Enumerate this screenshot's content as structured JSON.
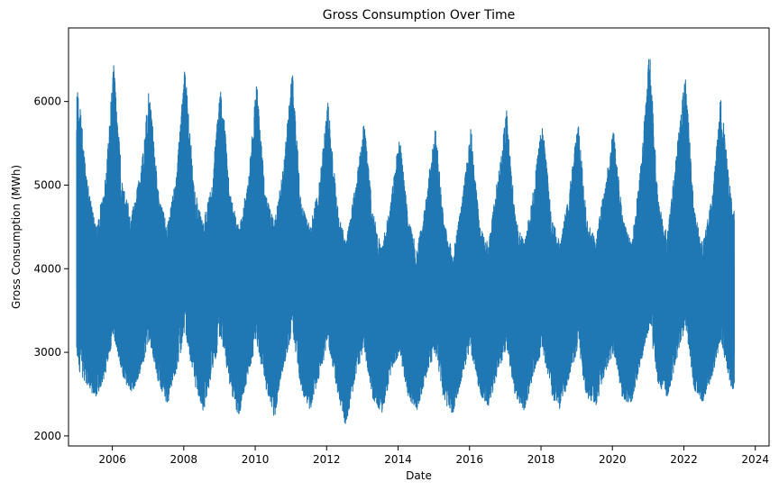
{
  "chart_data": {
    "type": "line",
    "title": "Gross Consumption Over Time",
    "xlabel": "Date",
    "ylabel": "Gross Consumption (MWh)",
    "x_range": [
      "2004-10-10",
      "2024-05-21"
    ],
    "ylim": [
      1880,
      6880
    ],
    "x_ticks": [
      "2006",
      "2008",
      "2010",
      "2012",
      "2014",
      "2016",
      "2018",
      "2020",
      "2022",
      "2024"
    ],
    "y_ticks": [
      2000,
      3000,
      4000,
      5000,
      6000
    ],
    "grid": false,
    "legend": "none",
    "color": "#1f77b4",
    "series": [
      {
        "date_start": "2005-01-01",
        "date_end": "2023-05-31",
        "monthly_envelope": [
          [
            "2005-01",
            2800,
            6200
          ],
          [
            "2005-04",
            2600,
            5100
          ],
          [
            "2005-07",
            2450,
            4500
          ],
          [
            "2005-10",
            2700,
            5000
          ],
          [
            "2006-01",
            3200,
            6450
          ],
          [
            "2006-04",
            2700,
            5000
          ],
          [
            "2006-07",
            2500,
            4650
          ],
          [
            "2006-10",
            2750,
            5150
          ],
          [
            "2007-01",
            3150,
            6200
          ],
          [
            "2007-04",
            2650,
            4950
          ],
          [
            "2007-07",
            2350,
            4500
          ],
          [
            "2007-10",
            2750,
            5100
          ],
          [
            "2008-01",
            3250,
            6450
          ],
          [
            "2008-04",
            2650,
            5000
          ],
          [
            "2008-07",
            2250,
            4550
          ],
          [
            "2008-10",
            2750,
            5000
          ],
          [
            "2009-01",
            3200,
            6300
          ],
          [
            "2009-04",
            2600,
            4950
          ],
          [
            "2009-07",
            2200,
            4500
          ],
          [
            "2009-10",
            2700,
            5000
          ],
          [
            "2010-01",
            3100,
            6250
          ],
          [
            "2010-04",
            2600,
            4900
          ],
          [
            "2010-07",
            2200,
            4550
          ],
          [
            "2010-10",
            2800,
            5200
          ],
          [
            "2011-01",
            3250,
            6400
          ],
          [
            "2011-04",
            2550,
            4800
          ],
          [
            "2011-07",
            2300,
            4500
          ],
          [
            "2011-10",
            2700,
            5000
          ],
          [
            "2012-01",
            3100,
            6000
          ],
          [
            "2012-04",
            2550,
            4800
          ],
          [
            "2012-07",
            2100,
            4300
          ],
          [
            "2012-10",
            2650,
            4950
          ],
          [
            "2013-01",
            3050,
            5800
          ],
          [
            "2013-04",
            2450,
            4700
          ],
          [
            "2013-07",
            2250,
            4250
          ],
          [
            "2013-10",
            2700,
            4800
          ],
          [
            "2014-01",
            3000,
            5600
          ],
          [
            "2014-04",
            2450,
            4600
          ],
          [
            "2014-07",
            2300,
            4250
          ],
          [
            "2014-10",
            2700,
            4850
          ],
          [
            "2015-01",
            3000,
            5750
          ],
          [
            "2015-04",
            2400,
            4550
          ],
          [
            "2015-07",
            2250,
            4200
          ],
          [
            "2015-10",
            2700,
            4800
          ],
          [
            "2016-01",
            3000,
            5700
          ],
          [
            "2016-04",
            2500,
            4500
          ],
          [
            "2016-07",
            2350,
            4300
          ],
          [
            "2016-10",
            2750,
            5100
          ],
          [
            "2017-01",
            3050,
            5900
          ],
          [
            "2017-04",
            2450,
            4600
          ],
          [
            "2017-07",
            2300,
            4300
          ],
          [
            "2017-10",
            2700,
            4950
          ],
          [
            "2018-01",
            3050,
            5800
          ],
          [
            "2018-04",
            2450,
            4650
          ],
          [
            "2018-07",
            2300,
            4300
          ],
          [
            "2018-10",
            2700,
            4950
          ],
          [
            "2019-01",
            3050,
            5750
          ],
          [
            "2019-04",
            2450,
            4600
          ],
          [
            "2019-07",
            2350,
            4350
          ],
          [
            "2019-10",
            2750,
            5000
          ],
          [
            "2020-01",
            3000,
            5700
          ],
          [
            "2020-04",
            2400,
            4600
          ],
          [
            "2020-07",
            2400,
            4300
          ],
          [
            "2020-10",
            2850,
            5200
          ],
          [
            "2021-01",
            3300,
            6650
          ],
          [
            "2021-04",
            2600,
            4800
          ],
          [
            "2021-07",
            2450,
            4400
          ],
          [
            "2021-10",
            2900,
            5350
          ],
          [
            "2022-01",
            3300,
            6400
          ],
          [
            "2022-04",
            2550,
            4700
          ],
          [
            "2022-07",
            2400,
            4300
          ],
          [
            "2022-10",
            2700,
            4850
          ],
          [
            "2023-01",
            3150,
            6100
          ],
          [
            "2023-03",
            2800,
            5350
          ],
          [
            "2023-05",
            2500,
            4700
          ]
        ]
      }
    ]
  }
}
